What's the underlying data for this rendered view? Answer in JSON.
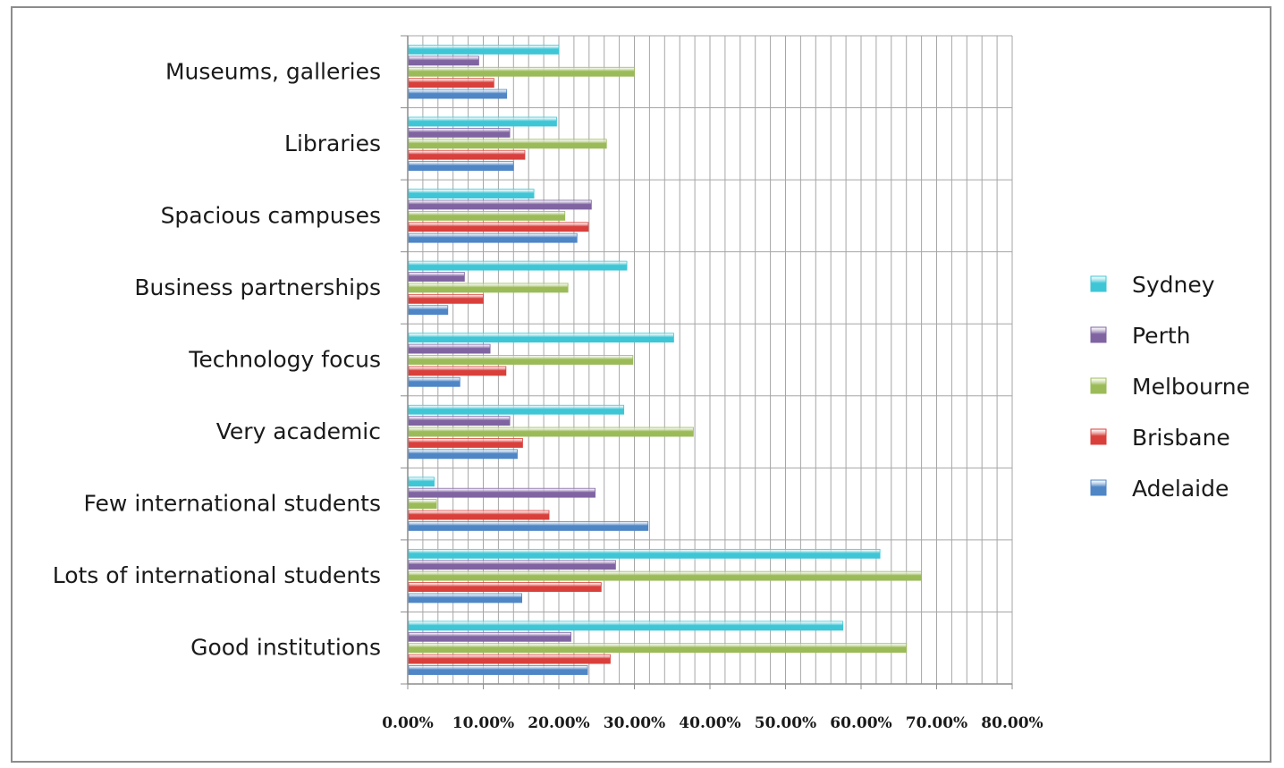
{
  "chart_data": {
    "type": "bar",
    "orientation": "horizontal",
    "categories": [
      "Museums, galleries",
      "Libraries",
      "Spacious campuses",
      "Business partnerships",
      "Technology focus",
      "Very academic",
      "Few international students",
      "Lots of international students",
      "Good institutions"
    ],
    "series": [
      {
        "name": "Sydney",
        "color": "#3fc6d6",
        "values": [
          0.2,
          0.197,
          0.167,
          0.29,
          0.352,
          0.286,
          0.035,
          0.625,
          0.576
        ]
      },
      {
        "name": "Perth",
        "color": "#8064a2",
        "values": [
          0.094,
          0.135,
          0.243,
          0.075,
          0.109,
          0.135,
          0.248,
          0.275,
          0.216
        ]
      },
      {
        "name": "Melbourne",
        "color": "#9bbb59",
        "values": [
          0.3,
          0.263,
          0.208,
          0.212,
          0.298,
          0.378,
          0.038,
          0.68,
          0.66
        ]
      },
      {
        "name": "Brisbane",
        "color": "#d9403c",
        "values": [
          0.114,
          0.155,
          0.239,
          0.1,
          0.13,
          0.152,
          0.187,
          0.256,
          0.268
        ]
      },
      {
        "name": "Adelaide",
        "color": "#4f86c6",
        "values": [
          0.131,
          0.14,
          0.224,
          0.053,
          0.069,
          0.145,
          0.318,
          0.151,
          0.238
        ]
      }
    ],
    "xlim": [
      0,
      0.8
    ],
    "x_ticks": [
      "0.00%",
      "10.00%",
      "20.00%",
      "30.00%",
      "40.00%",
      "50.00%",
      "60.00%",
      "70.00%",
      "80.00%"
    ],
    "x_minor_step": 0.02,
    "grid": true,
    "legend_position": "right",
    "title": "",
    "xlabel": "",
    "ylabel": ""
  }
}
